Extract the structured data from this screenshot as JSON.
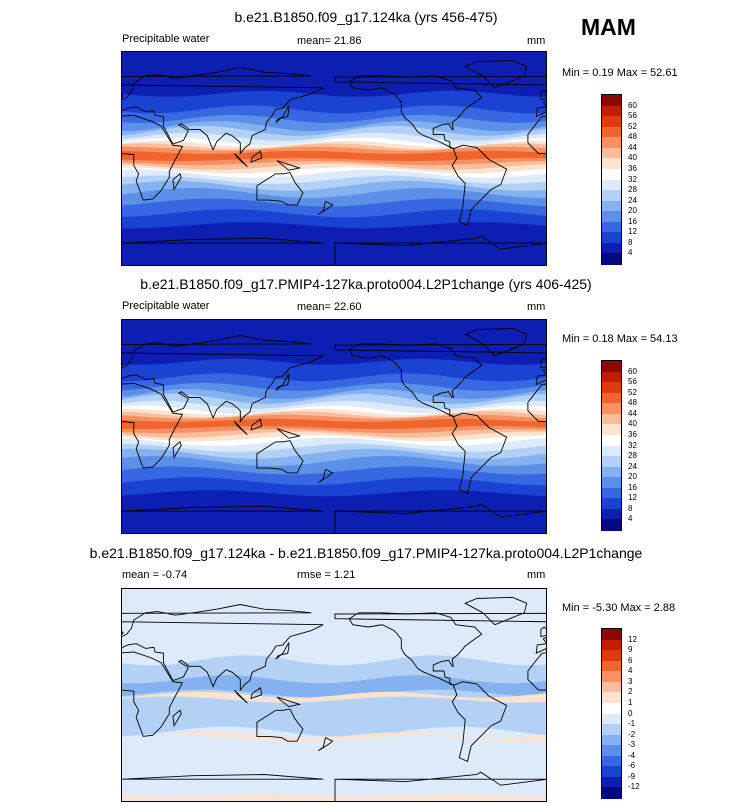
{
  "season": "MAM",
  "panels": [
    {
      "title": "b.e21.B1850.f09_g17.124ka (yrs 456-475)",
      "left_label": "Precipitable water",
      "center_label": "mean=  21.86",
      "right_label": "mm",
      "minmax": "Min =   0.19 Max =  52.61",
      "type": "absolute"
    },
    {
      "title": "b.e21.B1850.f09_g17.PMIP4-127ka.proto004.L2P1change (yrs 406-425)",
      "left_label": "Precipitable water",
      "center_label": "mean=  22.60",
      "right_label": "mm",
      "minmax": "Min =   0.18 Max =  54.13",
      "type": "absolute"
    },
    {
      "title": "b.e21.B1850.f09_g17.124ka - b.e21.B1850.f09_g17.PMIP4-127ka.proto004.L2P1change",
      "left_label": "mean =  -0.74",
      "center_label": "rmse =   1.21",
      "right_label": "mm",
      "minmax": "Min =  -5.30 Max =   2.88",
      "type": "difference"
    }
  ],
  "chart_data": [
    {
      "type": "heatmap",
      "title": "b.e21.B1850.f09_g17.124ka (yrs 456-475)",
      "variable": "Precipitable water",
      "units": "mm",
      "mean": 21.86,
      "min": 0.19,
      "max": 52.61,
      "colorbar_levels": [
        "60",
        "56",
        "52",
        "48",
        "44",
        "40",
        "36",
        "32",
        "28",
        "24",
        "20",
        "16",
        "12",
        "8",
        "4"
      ],
      "colorbar_colors": [
        "#8a0a00",
        "#c21c05",
        "#e03b10",
        "#f0652e",
        "#f79163",
        "#fbbe9d",
        "#fbe3d0",
        "#ffffff",
        "#dceafa",
        "#b3d1f6",
        "#84b2f0",
        "#5c90e8",
        "#3668e2",
        "#1a43d4",
        "#0d1fb2",
        "#040a7e"
      ],
      "zonal_profile": {
        "lat": [
          90,
          60,
          40,
          25,
          10,
          0,
          -10,
          -25,
          -40,
          -60,
          -90
        ],
        "value": [
          2,
          8,
          16,
          26,
          42,
          50,
          44,
          28,
          16,
          8,
          1
        ]
      }
    },
    {
      "type": "heatmap",
      "title": "b.e21.B1850.f09_g17.PMIP4-127ka.proto004.L2P1change (yrs 406-425)",
      "variable": "Precipitable water",
      "units": "mm",
      "mean": 22.6,
      "min": 0.18,
      "max": 54.13,
      "colorbar_levels": [
        "60",
        "56",
        "52",
        "48",
        "44",
        "40",
        "36",
        "32",
        "28",
        "24",
        "20",
        "16",
        "12",
        "8",
        "4"
      ],
      "colorbar_colors": [
        "#8a0a00",
        "#c21c05",
        "#e03b10",
        "#f0652e",
        "#f79163",
        "#fbbe9d",
        "#fbe3d0",
        "#ffffff",
        "#dceafa",
        "#b3d1f6",
        "#84b2f0",
        "#5c90e8",
        "#3668e2",
        "#1a43d4",
        "#0d1fb2",
        "#040a7e"
      ],
      "zonal_profile": {
        "lat": [
          90,
          60,
          40,
          25,
          10,
          0,
          -10,
          -25,
          -40,
          -60,
          -90
        ],
        "value": [
          2,
          8,
          17,
          27,
          43,
          51,
          45,
          29,
          16,
          8,
          1
        ]
      }
    },
    {
      "type": "heatmap",
      "title": "b.e21.B1850.f09_g17.124ka - b.e21.B1850.f09_g17.PMIP4-127ka.proto004.L2P1change",
      "units": "mm",
      "mean": -0.74,
      "rmse": 1.21,
      "min": -5.3,
      "max": 2.88,
      "colorbar_levels": [
        "12",
        "9",
        "6",
        "4",
        "3",
        "2",
        "1",
        "0",
        "-1",
        "-2",
        "-3",
        "-4",
        "-6",
        "-9",
        "-12"
      ],
      "colorbar_colors": [
        "#8a0a00",
        "#c21c05",
        "#e03b10",
        "#f0652e",
        "#f79163",
        "#fbbe9d",
        "#fbe3d0",
        "#ffffff",
        "#dceafa",
        "#b3d1f6",
        "#84b2f0",
        "#5c90e8",
        "#3668e2",
        "#1a43d4",
        "#0d1fb2",
        "#040a7e"
      ]
    }
  ]
}
